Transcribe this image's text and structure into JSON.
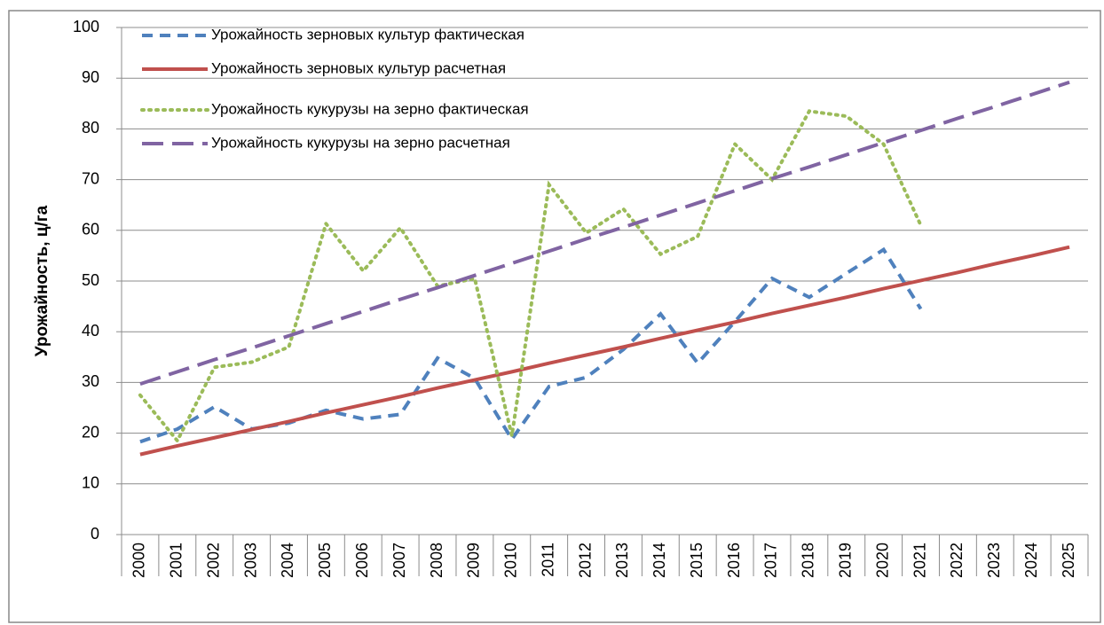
{
  "chart_data": {
    "type": "line",
    "ylabel": "Урожайность, ц/га",
    "categories": [
      "2000",
      "2001",
      "2002",
      "2003",
      "2004",
      "2005",
      "2006",
      "2007",
      "2008",
      "2009",
      "2010",
      "2011",
      "2012",
      "2013",
      "2014",
      "2015",
      "2016",
      "2017",
      "2018",
      "2019",
      "2020",
      "2021",
      "2022",
      "2023",
      "2024",
      "2025"
    ],
    "ylim": [
      0,
      100
    ],
    "yticks": [
      0,
      10,
      20,
      30,
      40,
      50,
      60,
      70,
      80,
      90,
      100
    ],
    "grid": true,
    "legend": "top-left",
    "series": [
      {
        "name": "Урожайность зерновых культур фактическая",
        "color": "#4f81bd",
        "line_style": "dashed",
        "values": [
          18.3,
          20.8,
          25.2,
          20.8,
          22.0,
          24.5,
          22.8,
          23.7,
          34.8,
          30.8,
          18.8,
          29.2,
          31.0,
          36.5,
          43.5,
          33.8,
          42.0,
          50.5,
          46.8,
          51.5,
          56.2,
          44.5,
          null,
          null,
          null,
          null
        ]
      },
      {
        "name": "Урожайность зерновых культур расчетная",
        "color": "#c0504d",
        "line_style": "solid",
        "values": [
          15.8,
          17.5,
          19.1,
          20.7,
          22.3,
          24.0,
          25.6,
          27.2,
          28.9,
          30.5,
          32.1,
          33.8,
          35.4,
          37.0,
          38.7,
          40.3,
          41.9,
          43.6,
          45.2,
          46.8,
          48.5,
          50.1,
          51.7,
          53.4,
          55.0,
          56.7
        ]
      },
      {
        "name": "Урожайность кукурузы на зерно фактическая",
        "color": "#9bbb59",
        "line_style": "dotted",
        "values": [
          27.5,
          18.5,
          33.0,
          34.0,
          37.0,
          61.3,
          52.0,
          60.5,
          49.0,
          50.5,
          19.5,
          69.0,
          59.5,
          64.2,
          55.3,
          58.8,
          77.0,
          70.0,
          83.5,
          82.5,
          77.0,
          61.0,
          null,
          null,
          null,
          null
        ]
      },
      {
        "name": "Урожайность кукурузы на зерно расчетная",
        "color": "#8064a2",
        "line_style": "long-dash",
        "values": [
          29.7,
          32.1,
          34.5,
          36.8,
          39.2,
          41.6,
          44.0,
          46.4,
          48.7,
          51.1,
          53.5,
          55.9,
          58.3,
          60.6,
          63.0,
          65.4,
          67.8,
          70.2,
          72.5,
          74.9,
          77.3,
          79.7,
          82.1,
          84.4,
          86.8,
          89.2
        ]
      }
    ]
  }
}
